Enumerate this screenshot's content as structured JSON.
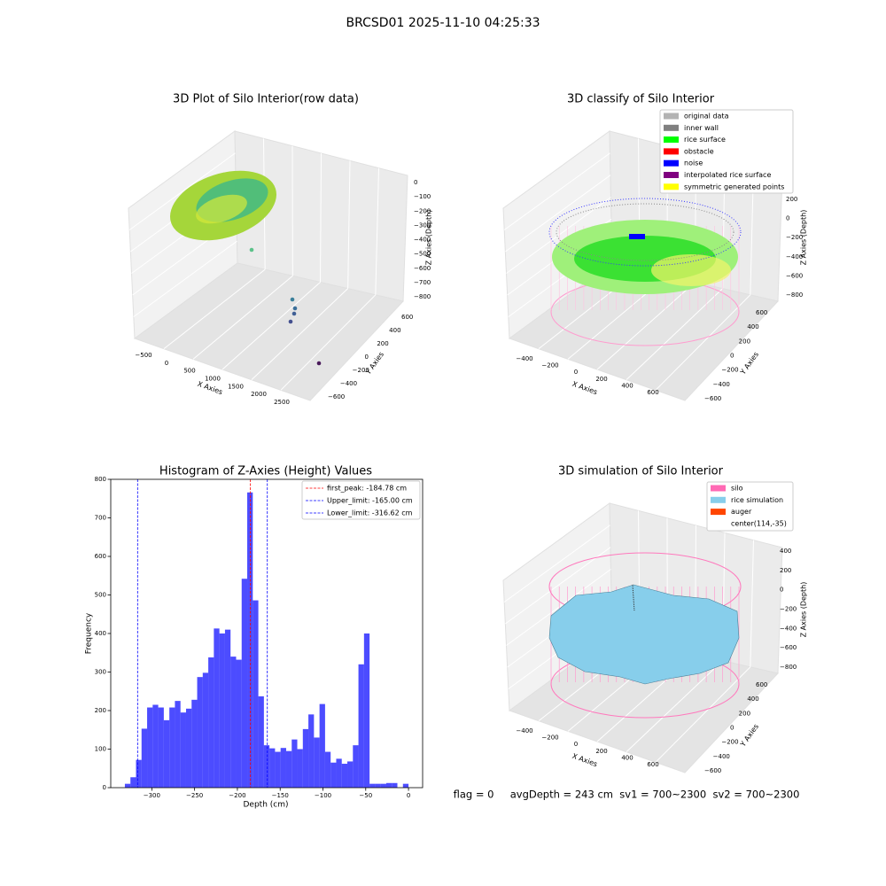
{
  "title": "BRCSD01 2025-11-10 04:25:33",
  "footer": "flag = 0     avgDepth = 243 cm  sv1 = 700~2300  sv2 = 700~2300",
  "panels": [
    {
      "title": "3D Plot of Silo Interior(row data)",
      "xlabel": "X Axies",
      "ylabel": "Y Axies",
      "zlabel": "Z Axies (Depth)",
      "xticks": [
        {
          "value": -500,
          "label": "−500"
        },
        0,
        500,
        1000,
        1500,
        2000,
        2500
      ],
      "yticks": [
        {
          "value": -600,
          "label": "−600"
        },
        {
          "value": -400,
          "label": "−400"
        },
        {
          "value": -200,
          "label": "−200"
        },
        0,
        200,
        400,
        600
      ],
      "zticks": [
        0,
        {
          "value": -100,
          "label": "−100"
        },
        {
          "value": -200,
          "label": "−200"
        },
        {
          "value": -300,
          "label": "−300"
        },
        {
          "value": -400,
          "label": "−400"
        },
        {
          "value": -500,
          "label": "−500"
        },
        {
          "value": -600,
          "label": "−600"
        },
        {
          "value": -700,
          "label": "−700"
        },
        {
          "value": -800,
          "label": "−800"
        }
      ]
    },
    {
      "title": "3D classify of Silo Interior",
      "xlabel": "X Axies",
      "ylabel": "Y Axies",
      "zlabel": "Z Axies (Depth)",
      "xticks": [
        {
          "value": -400,
          "label": "−400"
        },
        {
          "value": -200,
          "label": "−200"
        },
        0,
        200,
        400,
        600
      ],
      "yticks": [
        {
          "value": -600,
          "label": "−600"
        },
        {
          "value": -400,
          "label": "−400"
        },
        {
          "value": -200,
          "label": "−200"
        },
        0,
        200,
        400,
        600
      ],
      "zticks": [
        200,
        0,
        {
          "value": -200,
          "label": "−200"
        },
        {
          "value": -400,
          "label": "−400"
        },
        {
          "value": -600,
          "label": "−600"
        },
        {
          "value": -800,
          "label": "−800"
        }
      ],
      "legend": [
        {
          "name": "original data",
          "color": "#b3b3b3"
        },
        {
          "name": "inner wall",
          "color": "#808080"
        },
        {
          "name": "rice surface",
          "color": "#00ff00"
        },
        {
          "name": "obstacle",
          "color": "#ff0000"
        },
        {
          "name": "noise",
          "color": "#0000ff"
        },
        {
          "name": "interpolated rice surface",
          "color": "#800080"
        },
        {
          "name": "symmetric generated points",
          "color": "#ffff00"
        }
      ]
    },
    {
      "title": "3D simulation of Silo Interior",
      "xlabel": "X Axies",
      "ylabel": "Y Axies",
      "zlabel": "Z Axies (Depth)",
      "xticks": [
        {
          "value": -400,
          "label": "−400"
        },
        {
          "value": -200,
          "label": "−200"
        },
        0,
        200,
        400,
        600
      ],
      "yticks": [
        {
          "value": -600,
          "label": "−600"
        },
        {
          "value": -400,
          "label": "−400"
        },
        {
          "value": -200,
          "label": "−200"
        },
        0,
        200,
        400,
        600
      ],
      "zticks": [
        400,
        200,
        0,
        {
          "value": -200,
          "label": "−200"
        },
        {
          "value": -400,
          "label": "−400"
        },
        {
          "value": -600,
          "label": "−600"
        },
        {
          "value": -800,
          "label": "−800"
        }
      ],
      "legend": [
        {
          "name": "silo",
          "color": "#ff69b4"
        },
        {
          "name": "rice simulation",
          "color": "#87ceeb"
        },
        {
          "name": "auger",
          "color": "#ff4500"
        },
        {
          "name": "center(114,-35)"
        }
      ]
    }
  ],
  "chart_data": {
    "type": "histogram",
    "title": "Histogram of Z-Axies (Height) Values",
    "xlabel": "Depth (cm)",
    "ylabel": "Frequency",
    "color": "#0000ff",
    "bins": [
      -331.5,
      -325,
      -318.5,
      -312,
      -305.5,
      -299,
      -292.5,
      -286,
      -279.5,
      -273,
      -266.5,
      -260,
      -253.5,
      -247,
      -240.5,
      -234,
      -227.5,
      -221,
      -214.5,
      -208,
      -201.5,
      -195,
      -188.5,
      -182,
      -175.5,
      -169,
      -162.5,
      -156,
      -149.5,
      -143,
      -136.5,
      -130,
      -123.5,
      -117,
      -110.5,
      -104,
      -97.5,
      -91,
      -84.5,
      -78,
      -71.5,
      -65,
      -58.5,
      -52,
      -45.5,
      -39,
      -32.5,
      -26,
      -19.5,
      -13,
      -6.5,
      0
    ],
    "counts": [
      10,
      27,
      72,
      153,
      208,
      215,
      208,
      175,
      208,
      225,
      195,
      205,
      228,
      287,
      298,
      338,
      413,
      400,
      410,
      340,
      332,
      542,
      766,
      486,
      237,
      110,
      102,
      93,
      103,
      95,
      125,
      100,
      152,
      190,
      130,
      217,
      93,
      65,
      75,
      62,
      68,
      110,
      320,
      400,
      10,
      10,
      10,
      12,
      12,
      0,
      10
    ],
    "xlim": [
      -348,
      16.5
    ],
    "ylim": [
      0,
      800
    ],
    "xticks": [
      {
        "value": -300,
        "label": "−300"
      },
      {
        "value": -250,
        "label": "−250"
      },
      {
        "value": -200,
        "label": "−200"
      },
      {
        "value": -150,
        "label": "−150"
      },
      {
        "value": -100,
        "label": "−100"
      },
      {
        "value": -50,
        "label": "−50"
      },
      0
    ],
    "yticks": [
      0,
      100,
      200,
      300,
      400,
      500,
      600,
      700,
      800
    ],
    "lines": [
      {
        "label": "first_peak: -184.78 cm",
        "value": -184.78,
        "color": "#ff0000"
      },
      {
        "label": "Upper_limit: -165.00 cm",
        "value": -165,
        "color": "#0000ff"
      },
      {
        "label": "Lower_limit: -316.62 cm",
        "value": -316.62,
        "color": "#0000ff"
      }
    ]
  }
}
